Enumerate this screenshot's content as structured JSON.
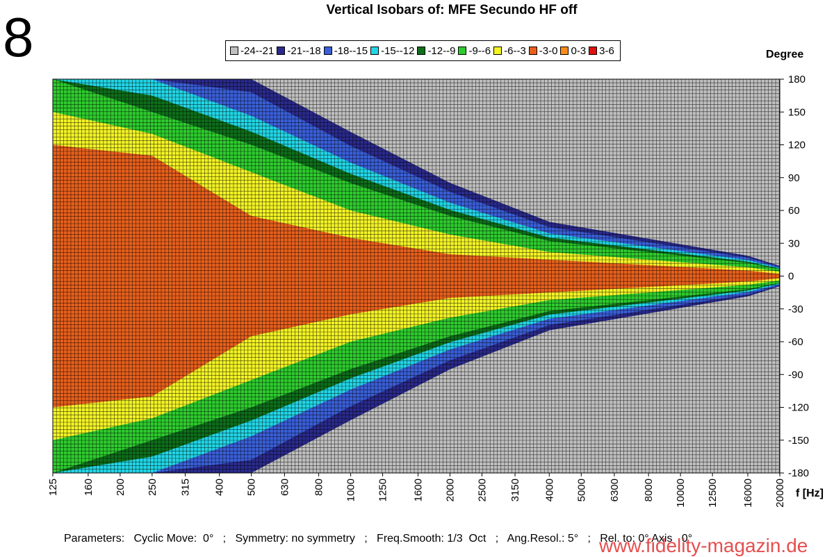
{
  "figure_number": "8",
  "watermark": "www.fidelity-magazin.de",
  "parameters_line": "Parameters:   Cyclic Move:  0°   ;   Symmetry: no symmetry   ;   Freq.Smooth: 1/3  Oct   ;   Ang.Resol.: 5°   ;   Rel. to: 0° Axis   0°",
  "colors": {
    "-24--21": "#c0c0c0",
    "-21--18": "#2a2a8c",
    "-18--15": "#3a5fd8",
    "-15--12": "#22d6e6",
    "-12--9": "#0e6e1a",
    "-9--6": "#2ecc2e",
    "-6--3": "#f4f425",
    "-3-0": "#e8601c",
    "0-3": "#ff8c1a",
    "3-6": "#e01010"
  },
  "chart_data": {
    "type": "heatmap",
    "title": "Vertical Isobars of:   MFE  Secundo  HF off",
    "xlabel": "f [Hz]",
    "ylabel": "Degree",
    "x_scale": "log",
    "xlim": [
      125,
      20000
    ],
    "ylim": [
      -180,
      180
    ],
    "x_ticks": [
      "125",
      "160",
      "200",
      "250",
      "315",
      "400",
      "500",
      "630",
      "800",
      "1000",
      "1250",
      "1600",
      "2000",
      "2500",
      "3150",
      "4000",
      "5000",
      "6300",
      "8000",
      "10000",
      "12500",
      "16000",
      "20000"
    ],
    "y_ticks": [
      180,
      150,
      120,
      90,
      60,
      30,
      0,
      -30,
      -60,
      -90,
      -120,
      -150,
      -180
    ],
    "grid": true,
    "legend_position": "top",
    "legend": [
      "-24--21",
      "-21--18",
      "-18--15",
      "-15--12",
      "-12--9",
      "-9--6",
      "-6--3",
      "-3-0",
      "0-3",
      "3-6"
    ],
    "value_unit": "dB",
    "levels_by_frequency": [
      {
        "f": 125,
        "half_widths_deg": {
          "-3-0": 120,
          "-6--3": 150,
          "-9--6": 180
        }
      },
      {
        "f": 250,
        "half_widths_deg": {
          "-3-0": 110,
          "-6--3": 130,
          "-9--6": 150
        }
      },
      {
        "f": 500,
        "half_widths_deg": {
          "-3-0": 55,
          "-6--3": 95,
          "-9--6": 120
        }
      },
      {
        "f": 1000,
        "half_widths_deg": {
          "-3-0": 35,
          "-6--3": 60,
          "-9--6": 85
        }
      },
      {
        "f": 2000,
        "half_widths_deg": {
          "-3-0": 20,
          "-6--3": 38,
          "-9--6": 55
        }
      },
      {
        "f": 4000,
        "half_widths_deg": {
          "-3-0": 15,
          "-6--3": 22,
          "-9--6": 32
        }
      },
      {
        "f": 8000,
        "half_widths_deg": {
          "-3-0": 10,
          "-6--3": 15,
          "-9--6": 22
        }
      },
      {
        "f": 16000,
        "half_widths_deg": {
          "-3-0": 5,
          "-6--3": 8,
          "-9--6": 12
        }
      },
      {
        "f": 20000,
        "half_widths_deg": {
          "-3-0": 2,
          "-6--3": 4,
          "-9--6": 6
        }
      }
    ]
  }
}
